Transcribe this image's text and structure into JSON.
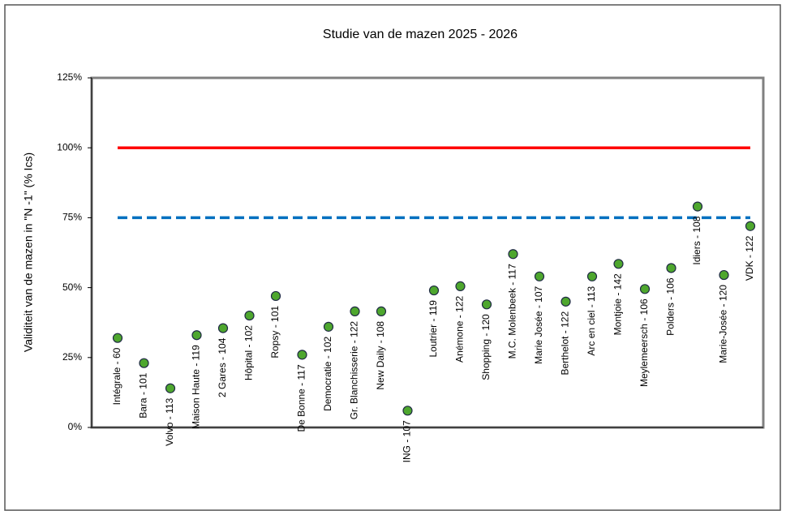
{
  "chart_data": {
    "type": "scatter",
    "title": "Studie van de mazen 2025 - 2026",
    "y_label": "Validiteit van de mazen in \"N -1\" (% Ics)",
    "categories": [
      "Intégrale - 60",
      "Bara - 101",
      "Volvo - 113",
      "Maison Haute - 119",
      "2 Gares - 104",
      "Hôpital - 102",
      "Ropsy - 101",
      "De Bonne - 117",
      "Democratie - 102",
      "Gr. Blanchisserie - 122",
      "New Daily - 108",
      "ING - 107",
      "Loutrier - 119",
      "Anémone - 122",
      "Shopping - 120",
      "M.C. Molenbeek - 117",
      "Marie Josée - 107",
      "Berthelot - 122",
      "Arc en ciel - 113",
      "Montjoie - 142",
      "Meylemeersch - 106",
      "Polders - 106",
      "Idiers - 108",
      "Marie-Josée - 120",
      "VDK - 122"
    ],
    "values": [
      32,
      23,
      14,
      33,
      35.5,
      40,
      47,
      26,
      36,
      41.5,
      41.5,
      6,
      49,
      50.5,
      44,
      62,
      54,
      45,
      54,
      58.5,
      49.5,
      57,
      79,
      54.5,
      72
    ],
    "color": "#4ea72e",
    "reference_lines": [
      {
        "value": 100,
        "color": "#ff0000",
        "dashed": false
      },
      {
        "value": 75,
        "color": "#0070c0",
        "dashed": true
      }
    ],
    "ylim": [
      0,
      125
    ],
    "yticks": [
      {
        "value": 0,
        "label": "0%"
      },
      {
        "value": 25,
        "label": "25%"
      },
      {
        "value": 50,
        "label": "50%"
      },
      {
        "value": 75,
        "label": "75%"
      },
      {
        "value": 100,
        "label": "100%"
      },
      {
        "value": 125,
        "label": "125%"
      }
    ]
  }
}
